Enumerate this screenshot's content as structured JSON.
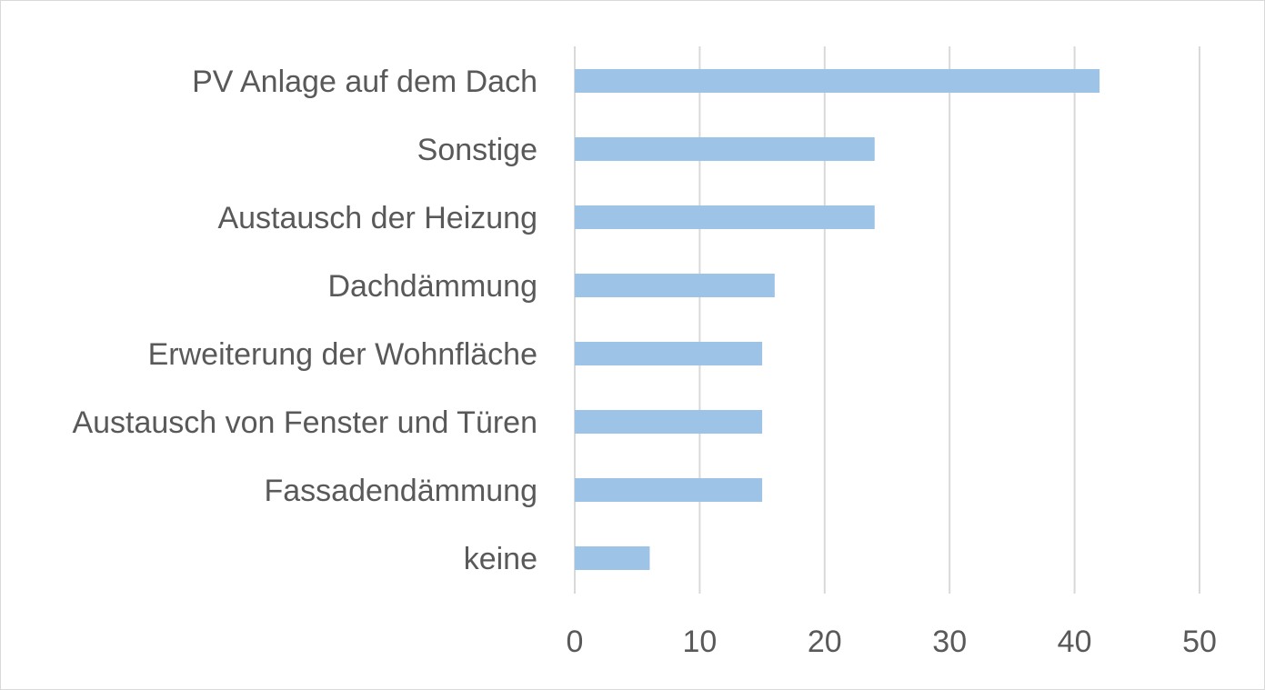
{
  "chart_data": {
    "type": "bar",
    "orientation": "horizontal",
    "categories": [
      "PV Anlage auf dem Dach",
      "Sonstige",
      "Austausch der Heizung",
      "Dachdämmung",
      "Erweiterung der Wohnfläche",
      "Austausch von Fenster und Türen",
      "Fassadendämmung",
      "keine"
    ],
    "values": [
      42,
      24,
      24,
      16,
      15,
      15,
      15,
      6
    ],
    "xlim": [
      0,
      50
    ],
    "xticks": [
      "0",
      "10",
      "20",
      "30",
      "40",
      "50"
    ],
    "grid": true,
    "legend": "none",
    "colors": {
      "bar": "#9dc3e6",
      "grid": "#d9d9d9",
      "text": "#595959"
    }
  }
}
